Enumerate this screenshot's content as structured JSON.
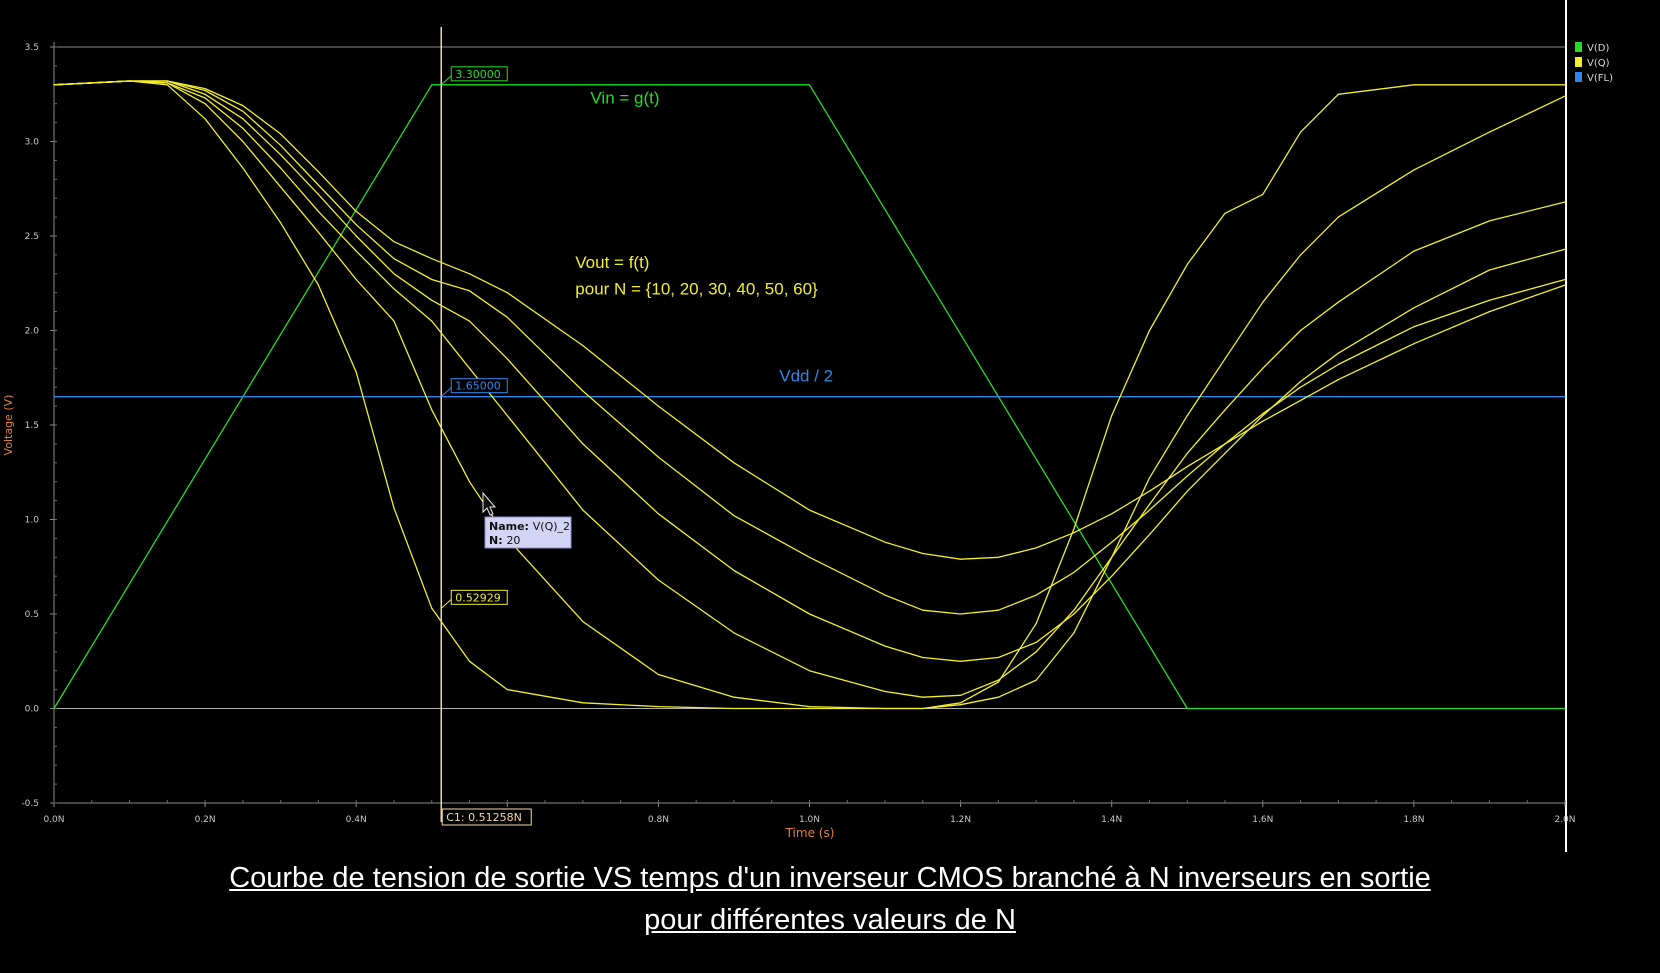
{
  "chart_data": {
    "type": "line",
    "xlabel": "Time (s)",
    "ylabel": "Voltage (V)",
    "xlim": [
      0,
      2.0
    ],
    "ylim": [
      -0.5,
      3.5
    ],
    "x_ticks": [
      "0.0N",
      "0.2N",
      "0.4N",
      "0.6N",
      "0.8N",
      "1.0N",
      "1.2N",
      "1.4N",
      "1.6N",
      "1.8N",
      "2.0N"
    ],
    "y_ticks": [
      "-0.5",
      "0.0",
      "0.5",
      "1.0",
      "1.5",
      "2.0",
      "2.5",
      "3.0",
      "3.5"
    ],
    "legend": [
      {
        "label": "V(D)",
        "color": "#22dd22"
      },
      {
        "label": "V(Q)",
        "color": "#f2ee2a"
      },
      {
        "label": "V(FL)",
        "color": "#2f86e8"
      }
    ],
    "legend_position": "right",
    "series": [
      {
        "name": "V(D)",
        "color": "#22dd22",
        "x": [
          0,
          0.5,
          1.0,
          1.5,
          2.0
        ],
        "y": [
          0,
          3.3,
          3.3,
          0,
          0
        ]
      },
      {
        "name": "V(FL)",
        "color": "#2f86e8",
        "x": [
          0,
          2.0
        ],
        "y": [
          1.65,
          1.65
        ]
      },
      {
        "name": "V(Q) N=10",
        "color": "#f2ee2a",
        "x": [
          0,
          0.1,
          0.15,
          0.2,
          0.25,
          0.3,
          0.35,
          0.4,
          0.45,
          0.5,
          0.55,
          0.6,
          0.7,
          0.8,
          0.9,
          1.0,
          1.1,
          1.15,
          1.2,
          1.25,
          1.3,
          1.35,
          1.4,
          1.45,
          1.5,
          1.55,
          1.6,
          1.65,
          1.7,
          1.8,
          1.9,
          2.0
        ],
        "y": [
          3.3,
          3.32,
          3.3,
          3.12,
          2.86,
          2.57,
          2.24,
          1.78,
          1.06,
          0.53,
          0.25,
          0.1,
          0.03,
          0.01,
          0.0,
          0.0,
          0.0,
          0.0,
          0.03,
          0.14,
          0.45,
          0.95,
          1.55,
          2.0,
          2.35,
          2.62,
          2.72,
          3.05,
          3.25,
          3.3,
          3.3,
          3.3
        ]
      },
      {
        "name": "V(Q) N=20",
        "color": "#f2ee2a",
        "x": [
          0,
          0.1,
          0.15,
          0.2,
          0.25,
          0.3,
          0.35,
          0.4,
          0.45,
          0.5,
          0.55,
          0.6,
          0.7,
          0.8,
          0.9,
          1.0,
          1.1,
          1.15,
          1.2,
          1.25,
          1.3,
          1.35,
          1.4,
          1.45,
          1.5,
          1.55,
          1.6,
          1.65,
          1.7,
          1.8,
          1.9,
          2.0
        ],
        "y": [
          3.3,
          3.32,
          3.31,
          3.2,
          3.0,
          2.76,
          2.52,
          2.27,
          2.05,
          1.58,
          1.2,
          0.9,
          0.46,
          0.18,
          0.06,
          0.01,
          0.0,
          0.0,
          0.02,
          0.06,
          0.15,
          0.4,
          0.8,
          1.22,
          1.55,
          1.85,
          2.15,
          2.4,
          2.6,
          2.85,
          3.05,
          3.24
        ]
      },
      {
        "name": "V(Q) N=30",
        "color": "#f2ee2a",
        "x": [
          0,
          0.1,
          0.15,
          0.2,
          0.25,
          0.3,
          0.35,
          0.4,
          0.45,
          0.5,
          0.55,
          0.6,
          0.7,
          0.8,
          0.9,
          1.0,
          1.1,
          1.15,
          1.2,
          1.25,
          1.3,
          1.35,
          1.4,
          1.45,
          1.5,
          1.55,
          1.6,
          1.65,
          1.7,
          1.8,
          1.9,
          2.0
        ],
        "y": [
          3.3,
          3.32,
          3.31,
          3.23,
          3.07,
          2.86,
          2.63,
          2.42,
          2.22,
          2.05,
          1.8,
          1.55,
          1.05,
          0.68,
          0.4,
          0.2,
          0.09,
          0.06,
          0.07,
          0.15,
          0.3,
          0.52,
          0.8,
          1.08,
          1.35,
          1.58,
          1.8,
          2.0,
          2.15,
          2.42,
          2.58,
          2.68
        ]
      },
      {
        "name": "V(Q) N=40",
        "color": "#f2ee2a",
        "x": [
          0,
          0.1,
          0.15,
          0.2,
          0.25,
          0.3,
          0.35,
          0.4,
          0.45,
          0.5,
          0.55,
          0.6,
          0.7,
          0.8,
          0.9,
          1.0,
          1.1,
          1.15,
          1.2,
          1.25,
          1.3,
          1.35,
          1.4,
          1.45,
          1.5,
          1.55,
          1.6,
          1.65,
          1.7,
          1.8,
          1.9,
          2.0
        ],
        "y": [
          3.3,
          3.32,
          3.32,
          3.25,
          3.12,
          2.93,
          2.72,
          2.5,
          2.3,
          2.16,
          2.05,
          1.85,
          1.4,
          1.03,
          0.73,
          0.5,
          0.33,
          0.27,
          0.25,
          0.27,
          0.35,
          0.5,
          0.7,
          0.92,
          1.15,
          1.35,
          1.55,
          1.73,
          1.88,
          2.12,
          2.32,
          2.43
        ]
      },
      {
        "name": "V(Q) N=50",
        "color": "#f2ee2a",
        "x": [
          0,
          0.1,
          0.15,
          0.2,
          0.25,
          0.3,
          0.35,
          0.4,
          0.45,
          0.5,
          0.55,
          0.6,
          0.7,
          0.8,
          0.9,
          1.0,
          1.1,
          1.15,
          1.2,
          1.25,
          1.3,
          1.35,
          1.4,
          1.45,
          1.5,
          1.55,
          1.6,
          1.65,
          1.7,
          1.8,
          1.9,
          2.0
        ],
        "y": [
          3.3,
          3.32,
          3.32,
          3.27,
          3.16,
          2.98,
          2.77,
          2.56,
          2.38,
          2.27,
          2.21,
          2.07,
          1.68,
          1.33,
          1.02,
          0.8,
          0.6,
          0.52,
          0.5,
          0.52,
          0.6,
          0.72,
          0.88,
          1.05,
          1.23,
          1.4,
          1.56,
          1.7,
          1.82,
          2.02,
          2.16,
          2.27
        ]
      },
      {
        "name": "V(Q) N=60",
        "color": "#f2ee2a",
        "x": [
          0,
          0.1,
          0.15,
          0.2,
          0.25,
          0.3,
          0.35,
          0.4,
          0.45,
          0.5,
          0.55,
          0.6,
          0.7,
          0.8,
          0.9,
          1.0,
          1.1,
          1.15,
          1.2,
          1.25,
          1.3,
          1.35,
          1.4,
          1.45,
          1.5,
          1.55,
          1.6,
          1.65,
          1.7,
          1.8,
          1.9,
          2.0
        ],
        "y": [
          3.3,
          3.32,
          3.32,
          3.28,
          3.19,
          3.04,
          2.84,
          2.63,
          2.47,
          2.38,
          2.3,
          2.2,
          1.92,
          1.6,
          1.3,
          1.05,
          0.88,
          0.82,
          0.79,
          0.8,
          0.85,
          0.93,
          1.03,
          1.15,
          1.28,
          1.4,
          1.52,
          1.63,
          1.74,
          1.93,
          2.1,
          2.24
        ]
      }
    ],
    "annotations": [
      {
        "text": "Vin = g(t)",
        "color": "#22dd22",
        "x": 0.71,
        "y": 3.2
      },
      {
        "text": "Vout = f(t)",
        "color": "#f2ee2a",
        "x": 0.69,
        "y": 2.33
      },
      {
        "text": "pour N = {10, 20, 30, 40, 50, 60}",
        "color": "#f2ee2a",
        "x": 0.69,
        "y": 2.19
      },
      {
        "text": "Vdd  / 2",
        "color": "#2f86e8",
        "x": 0.96,
        "y": 1.73
      }
    ],
    "cursor": {
      "x": 0.51258,
      "label": "C1: 0.51258N",
      "markers": [
        {
          "text": "3.30000",
          "y": 3.3,
          "color": "#22dd22"
        },
        {
          "text": "1.65000",
          "y": 1.65,
          "color": "#2f86e8"
        },
        {
          "text": "0.52929",
          "y": 0.53,
          "color": "#f2ee2a"
        }
      ]
    },
    "tooltip": {
      "name_key": "Name:",
      "name_val": "V(Q)_2",
      "n_key": "N:",
      "n_val": "20"
    }
  },
  "caption": {
    "line1": "Courbe de tension de sortie VS temps   d'un inverseur CMOS branché à N inverseurs en sortie",
    "line2": "pour différentes valeurs de N"
  }
}
